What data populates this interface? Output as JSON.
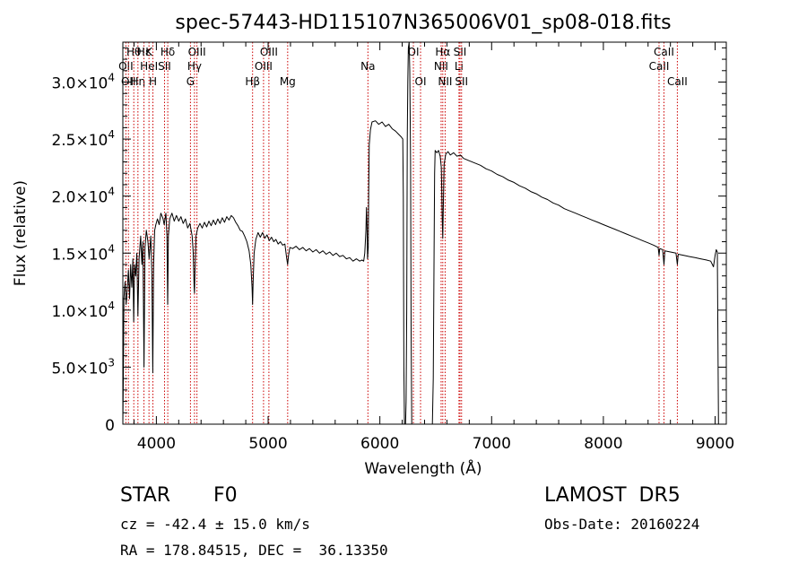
{
  "chart_data": {
    "type": "line",
    "title": "spec-57443-HD115107N365006V01_sp08-018.fits",
    "xlabel": "Wavelength (Å)",
    "ylabel": "Flux (relative)",
    "xlim": [
      3700,
      9100
    ],
    "ylim": [
      0,
      33500
    ],
    "x_ticks": [
      4000,
      5000,
      6000,
      7000,
      8000,
      9000
    ],
    "x_tick_labels": [
      "4000",
      "5000",
      "6000",
      "7000",
      "8000",
      "9000"
    ],
    "y_ticks": [
      0,
      5000,
      10000,
      15000,
      20000,
      25000,
      30000
    ],
    "y_tick_labels": [
      {
        "mant": "0",
        "exp": ""
      },
      {
        "mant": "5.0×10",
        "exp": "3"
      },
      {
        "mant": "1.0×10",
        "exp": "4"
      },
      {
        "mant": "1.5×10",
        "exp": "4"
      },
      {
        "mant": "2.0×10",
        "exp": "4"
      },
      {
        "mant": "2.5×10",
        "exp": "4"
      },
      {
        "mant": "3.0×10",
        "exp": "4"
      }
    ],
    "grid": false,
    "series": [
      {
        "points": [
          [
            3700,
            0
          ],
          [
            3705,
            4500
          ],
          [
            3710,
            11000
          ],
          [
            3720,
            12500
          ],
          [
            3730,
            10500
          ],
          [
            3740,
            12000
          ],
          [
            3750,
            13500
          ],
          [
            3760,
            11000
          ],
          [
            3770,
            14000
          ],
          [
            3780,
            12000
          ],
          [
            3790,
            14500
          ],
          [
            3797,
            9000
          ],
          [
            3805,
            14000
          ],
          [
            3815,
            13000
          ],
          [
            3825,
            15000
          ],
          [
            3835,
            9500
          ],
          [
            3845,
            14500
          ],
          [
            3860,
            16500
          ],
          [
            3870,
            14000
          ],
          [
            3880,
            16000
          ],
          [
            3889,
            5000
          ],
          [
            3898,
            15500
          ],
          [
            3910,
            17000
          ],
          [
            3925,
            16000
          ],
          [
            3935,
            14500
          ],
          [
            3950,
            16500
          ],
          [
            3960,
            13000
          ],
          [
            3968,
            4500
          ],
          [
            3975,
            14000
          ],
          [
            3985,
            17000
          ],
          [
            3995,
            17500
          ],
          [
            4010,
            18000
          ],
          [
            4025,
            17500
          ],
          [
            4040,
            18500
          ],
          [
            4060,
            18000
          ],
          [
            4070,
            17500
          ],
          [
            4085,
            18500
          ],
          [
            4095,
            16500
          ],
          [
            4101,
            10500
          ],
          [
            4108,
            16500
          ],
          [
            4120,
            18000
          ],
          [
            4140,
            18500
          ],
          [
            4160,
            17800
          ],
          [
            4180,
            18300
          ],
          [
            4200,
            17800
          ],
          [
            4220,
            18200
          ],
          [
            4240,
            17600
          ],
          [
            4260,
            18000
          ],
          [
            4280,
            17200
          ],
          [
            4300,
            17600
          ],
          [
            4320,
            16500
          ],
          [
            4330,
            15000
          ],
          [
            4338,
            12000
          ],
          [
            4341,
            11500
          ],
          [
            4346,
            13500
          ],
          [
            4355,
            16500
          ],
          [
            4370,
            17200
          ],
          [
            4390,
            17600
          ],
          [
            4410,
            17200
          ],
          [
            4430,
            17700
          ],
          [
            4450,
            17300
          ],
          [
            4470,
            17800
          ],
          [
            4490,
            17400
          ],
          [
            4510,
            17900
          ],
          [
            4530,
            17500
          ],
          [
            4550,
            18000
          ],
          [
            4570,
            17600
          ],
          [
            4590,
            18100
          ],
          [
            4610,
            17700
          ],
          [
            4630,
            18200
          ],
          [
            4650,
            17900
          ],
          [
            4670,
            18300
          ],
          [
            4690,
            18100
          ],
          [
            4710,
            17700
          ],
          [
            4730,
            17400
          ],
          [
            4750,
            17000
          ],
          [
            4770,
            16900
          ],
          [
            4790,
            16500
          ],
          [
            4810,
            16000
          ],
          [
            4830,
            15200
          ],
          [
            4845,
            14000
          ],
          [
            4856,
            12000
          ],
          [
            4861,
            10500
          ],
          [
            4866,
            12500
          ],
          [
            4875,
            15000
          ],
          [
            4890,
            16200
          ],
          [
            4910,
            16800
          ],
          [
            4930,
            16400
          ],
          [
            4950,
            16800
          ],
          [
            4970,
            16300
          ],
          [
            4990,
            16600
          ],
          [
            5010,
            16100
          ],
          [
            5030,
            16400
          ],
          [
            5050,
            16000
          ],
          [
            5070,
            16200
          ],
          [
            5090,
            15800
          ],
          [
            5110,
            16000
          ],
          [
            5130,
            15700
          ],
          [
            5150,
            15800
          ],
          [
            5167,
            14500
          ],
          [
            5175,
            14000
          ],
          [
            5183,
            14800
          ],
          [
            5195,
            15500
          ],
          [
            5220,
            15400
          ],
          [
            5250,
            15600
          ],
          [
            5280,
            15300
          ],
          [
            5310,
            15500
          ],
          [
            5340,
            15200
          ],
          [
            5370,
            15400
          ],
          [
            5400,
            15100
          ],
          [
            5430,
            15300
          ],
          [
            5460,
            15000
          ],
          [
            5490,
            15200
          ],
          [
            5520,
            14900
          ],
          [
            5550,
            15100
          ],
          [
            5580,
            14800
          ],
          [
            5610,
            15000
          ],
          [
            5640,
            14700
          ],
          [
            5670,
            14800
          ],
          [
            5700,
            14500
          ],
          [
            5730,
            14600
          ],
          [
            5760,
            14300
          ],
          [
            5790,
            14500
          ],
          [
            5820,
            14300
          ],
          [
            5840,
            14400
          ],
          [
            5855,
            14300
          ],
          [
            5865,
            15000
          ],
          [
            5875,
            17000
          ],
          [
            5880,
            19000
          ],
          [
            5885,
            17500
          ],
          [
            5890,
            14500
          ],
          [
            5896,
            15500
          ],
          [
            5900,
            20500
          ],
          [
            5905,
            24500
          ],
          [
            5915,
            25800
          ],
          [
            5930,
            26500
          ],
          [
            5960,
            26600
          ],
          [
            5990,
            26300
          ],
          [
            6020,
            26500
          ],
          [
            6050,
            26100
          ],
          [
            6080,
            26300
          ],
          [
            6110,
            25900
          ],
          [
            6140,
            25700
          ],
          [
            6170,
            25400
          ],
          [
            6190,
            25200
          ],
          [
            6205,
            25000
          ],
          [
            6210,
            20000
          ],
          [
            6215,
            5000
          ],
          [
            6220,
            0
          ],
          [
            6230,
            0
          ],
          [
            6235,
            2000
          ],
          [
            6240,
            10000
          ],
          [
            6245,
            25000
          ],
          [
            6250,
            30000
          ],
          [
            6255,
            33000
          ],
          [
            6262,
            33500
          ],
          [
            6268,
            31000
          ],
          [
            6275,
            23000
          ],
          [
            6280,
            8000
          ],
          [
            6285,
            0
          ],
          [
            6470,
            0
          ],
          [
            6478,
            4000
          ],
          [
            6485,
            15000
          ],
          [
            6490,
            22000
          ],
          [
            6495,
            24000
          ],
          [
            6510,
            23800
          ],
          [
            6525,
            24000
          ],
          [
            6540,
            23500
          ],
          [
            6550,
            22500
          ],
          [
            6558,
            18000
          ],
          [
            6563,
            16300
          ],
          [
            6568,
            19000
          ],
          [
            6575,
            22800
          ],
          [
            6590,
            23700
          ],
          [
            6610,
            23900
          ],
          [
            6630,
            23600
          ],
          [
            6660,
            23800
          ],
          [
            6690,
            23500
          ],
          [
            6720,
            23600
          ],
          [
            6750,
            23300
          ],
          [
            6800,
            23100
          ],
          [
            6850,
            22900
          ],
          [
            6900,
            22700
          ],
          [
            6950,
            22400
          ],
          [
            7000,
            22200
          ],
          [
            7050,
            21900
          ],
          [
            7100,
            21700
          ],
          [
            7150,
            21400
          ],
          [
            7200,
            21200
          ],
          [
            7250,
            20900
          ],
          [
            7300,
            20700
          ],
          [
            7350,
            20400
          ],
          [
            7400,
            20200
          ],
          [
            7450,
            19900
          ],
          [
            7500,
            19700
          ],
          [
            7550,
            19400
          ],
          [
            7600,
            19200
          ],
          [
            7650,
            18900
          ],
          [
            7700,
            18700
          ],
          [
            7750,
            18500
          ],
          [
            7800,
            18300
          ],
          [
            7850,
            18100
          ],
          [
            7900,
            17900
          ],
          [
            7950,
            17700
          ],
          [
            8000,
            17500
          ],
          [
            8050,
            17300
          ],
          [
            8100,
            17100
          ],
          [
            8150,
            16900
          ],
          [
            8200,
            16700
          ],
          [
            8250,
            16500
          ],
          [
            8300,
            16300
          ],
          [
            8350,
            16100
          ],
          [
            8400,
            15900
          ],
          [
            8450,
            15700
          ],
          [
            8490,
            15500
          ],
          [
            8498,
            14800
          ],
          [
            8505,
            15400
          ],
          [
            8530,
            15300
          ],
          [
            8542,
            14000
          ],
          [
            8550,
            15200
          ],
          [
            8600,
            15100
          ],
          [
            8650,
            15000
          ],
          [
            8662,
            14000
          ],
          [
            8670,
            14900
          ],
          [
            8720,
            14800
          ],
          [
            8770,
            14700
          ],
          [
            8820,
            14600
          ],
          [
            8870,
            14500
          ],
          [
            8920,
            14400
          ],
          [
            8960,
            14300
          ],
          [
            8985,
            13800
          ],
          [
            9000,
            14800
          ],
          [
            9010,
            15300
          ],
          [
            9020,
            15100
          ],
          [
            9025,
            7000
          ],
          [
            9030,
            0
          ]
        ]
      }
    ],
    "line_markers": [
      {
        "wl": 3727,
        "labels": [
          {
            "text": "OII",
            "row": 1
          }
        ]
      },
      {
        "wl": 3750,
        "labels": [
          {
            "text": "OII",
            "row": 2
          }
        ]
      },
      {
        "wl": 3798,
        "labels": [
          {
            "text": "Hθ",
            "row": 0
          }
        ]
      },
      {
        "wl": 3835,
        "labels": [
          {
            "text": "Hη",
            "row": 2
          }
        ]
      },
      {
        "wl": 3889,
        "labels": [
          {
            "text": "Hε",
            "row": 0
          }
        ]
      },
      {
        "wl": 3934,
        "labels": [
          {
            "text": "K",
            "row": 0
          },
          {
            "text": "HeI",
            "row": 1
          }
        ]
      },
      {
        "wl": 3969,
        "labels": [
          {
            "text": "H",
            "row": 2
          }
        ]
      },
      {
        "wl": 4073,
        "labels": [
          {
            "text": "SII",
            "row": 1
          }
        ]
      },
      {
        "wl": 4102,
        "labels": [
          {
            "text": "Hδ",
            "row": 0
          }
        ]
      },
      {
        "wl": 4305,
        "labels": [
          {
            "text": "G",
            "row": 2
          }
        ]
      },
      {
        "wl": 4341,
        "labels": [
          {
            "text": "Hγ",
            "row": 1
          }
        ]
      },
      {
        "wl": 4363,
        "labels": [
          {
            "text": "OIII",
            "row": 0
          }
        ]
      },
      {
        "wl": 4861,
        "labels": [
          {
            "text": "Hβ",
            "row": 2
          }
        ]
      },
      {
        "wl": 4959,
        "labels": [
          {
            "text": "OIII",
            "row": 1
          }
        ]
      },
      {
        "wl": 5007,
        "labels": [
          {
            "text": "OIII",
            "row": 0
          }
        ]
      },
      {
        "wl": 5175,
        "labels": [
          {
            "text": "Mg",
            "row": 2
          }
        ]
      },
      {
        "wl": 5893,
        "labels": [
          {
            "text": "Na",
            "row": 1
          }
        ]
      },
      {
        "wl": 6300,
        "labels": [
          {
            "text": "OI",
            "row": 0
          }
        ]
      },
      {
        "wl": 6364,
        "labels": [
          {
            "text": "OI",
            "row": 2
          }
        ]
      },
      {
        "wl": 6548,
        "labels": [
          {
            "text": "NII",
            "row": 1
          }
        ]
      },
      {
        "wl": 6563,
        "labels": [
          {
            "text": "Hα",
            "row": 0
          }
        ]
      },
      {
        "wl": 6584,
        "labels": [
          {
            "text": "NII",
            "row": 2
          }
        ]
      },
      {
        "wl": 6708,
        "labels": [
          {
            "text": "Li",
            "row": 1
          }
        ]
      },
      {
        "wl": 6717,
        "labels": [
          {
            "text": "SII",
            "row": 0
          }
        ]
      },
      {
        "wl": 6731,
        "labels": [
          {
            "text": "SII",
            "row": 2
          }
        ]
      },
      {
        "wl": 8498,
        "labels": [
          {
            "text": "CaII",
            "row": 1
          }
        ]
      },
      {
        "wl": 8542,
        "labels": [
          {
            "text": "CaII",
            "row": 0
          }
        ]
      },
      {
        "wl": 8662,
        "labels": [
          {
            "text": "CaII",
            "row": 2
          }
        ]
      }
    ],
    "marker_color": "#cc0000",
    "line_color": "#000000"
  },
  "info": {
    "class": "STAR",
    "subclass": "F0",
    "survey": "LAMOST  DR5",
    "cz": "cz = -42.4 ± 15.0 km/s",
    "obs_date": "Obs-Date: 20160224",
    "coords": "RA = 178.84515, DEC =  36.13350"
  }
}
